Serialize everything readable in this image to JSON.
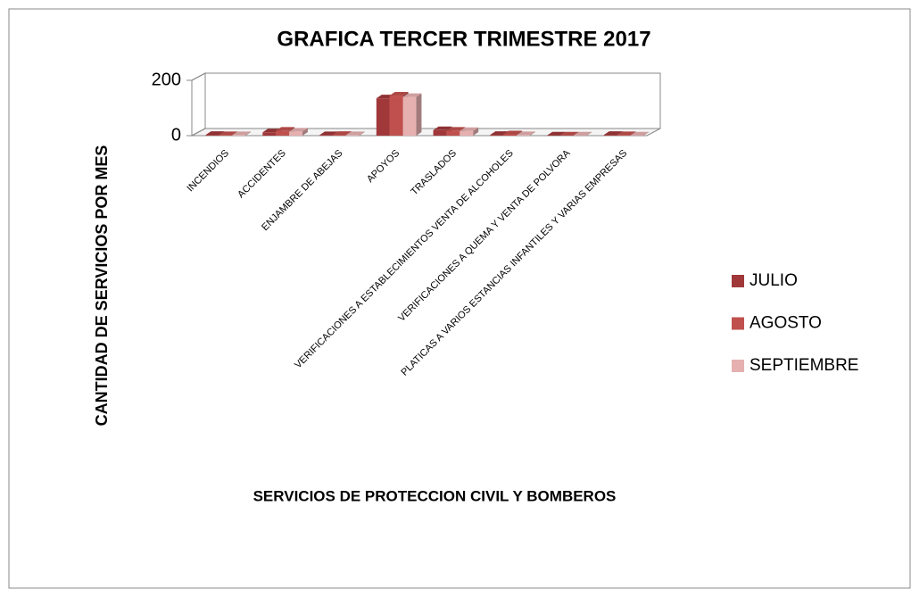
{
  "chart_data": {
    "type": "bar3d",
    "title": "GRAFICA TERCER TRIMESTRE 2017",
    "y_label": "CANTIDAD DE SERVICIOS POR MES",
    "x_label": "SERVICIOS DE PROTECCION CIVIL Y BOMBEROS",
    "categories": [
      "INCENDIOS",
      "ACCIDENTES",
      "ENJAMBRE DE ABEJAS",
      "APOYOS",
      "TRASLADOS",
      "VERIFICACIONES  A ESTABLECIMIENTOS  VENTA DE ALCOHOLES",
      "VERIFICACIONES A  QUEMA Y VENTA DE POLVORA",
      "PLATICAS A VARIOS ESTANCIAS INFANTILES Y VARIAS EMPRESAS"
    ],
    "series": [
      {
        "name": "JULIO",
        "color": "#a0383a",
        "values": [
          3,
          12,
          2,
          135,
          20,
          3,
          1,
          3
        ]
      },
      {
        "name": "AGOSTO",
        "color": "#c0504d",
        "values": [
          2,
          18,
          3,
          145,
          18,
          5,
          1,
          2
        ]
      },
      {
        "name": "SEPTIEMBRE",
        "color": "#e6b0b0",
        "values": [
          2,
          15,
          2,
          140,
          17,
          2,
          1,
          1
        ]
      }
    ],
    "ylim": [
      0,
      200
    ],
    "yticks": [
      0,
      200
    ],
    "grid": true,
    "legend": "right"
  }
}
